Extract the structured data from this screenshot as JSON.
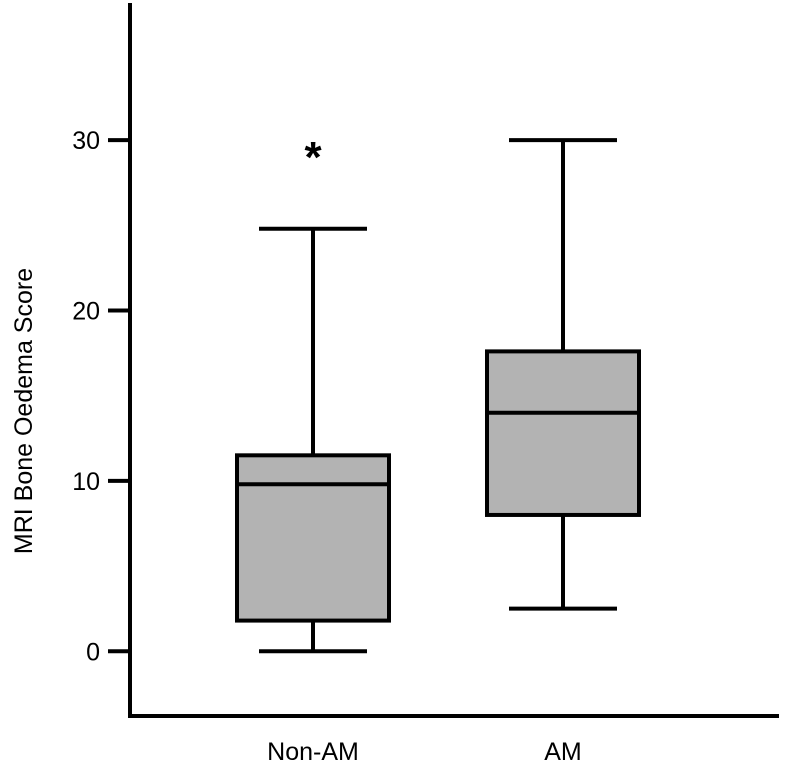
{
  "chart_data": {
    "type": "box",
    "title": "",
    "xlabel": "",
    "ylabel": "MRI Bone Oedema Score",
    "ylim": [
      -3.8,
      35.7
    ],
    "yticks": [
      0,
      10,
      20,
      30
    ],
    "ytick_labels": [
      "0",
      "10",
      "20",
      "30"
    ],
    "categories": [
      "Non-AM",
      "AM"
    ],
    "box_fill": "#b3b3b3",
    "boxes": [
      {
        "category": "Non-AM",
        "min": 0,
        "q1": 1.8,
        "median": 9.8,
        "q3": 11.5,
        "max": 24.8,
        "annotation": "*"
      },
      {
        "category": "AM",
        "min": 2.5,
        "q1": 8.0,
        "median": 14.0,
        "q3": 17.6,
        "max": 30.0,
        "annotation": ""
      }
    ],
    "grid": false,
    "legend": "none"
  }
}
